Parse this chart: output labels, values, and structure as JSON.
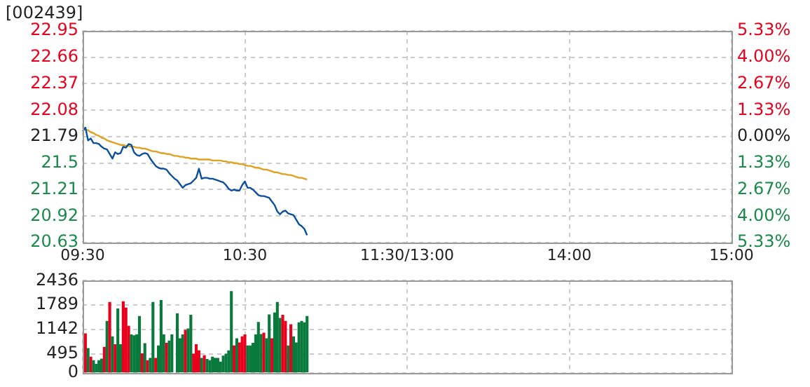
{
  "chart_data": [
    {
      "type": "line",
      "title": "[002439]",
      "categories": [
        "09:30",
        null,
        null,
        null,
        null,
        null,
        null,
        null,
        null,
        null,
        null,
        null,
        null,
        null,
        null,
        null,
        null,
        null,
        null,
        null,
        null,
        null,
        null,
        null,
        null,
        null,
        null,
        null,
        null,
        null,
        null,
        null,
        null,
        null,
        null,
        null,
        null,
        null,
        null,
        null,
        null,
        null,
        null,
        null,
        null,
        null,
        null,
        null,
        null,
        null,
        null,
        null,
        null,
        null,
        null,
        null,
        null,
        null,
        null,
        null,
        "10:30",
        null,
        null,
        null,
        null,
        null,
        null,
        null,
        null,
        null,
        null,
        null,
        null,
        null,
        null,
        null,
        null,
        null,
        null,
        null,
        null,
        null,
        null,
        null,
        null,
        null,
        null,
        null,
        null,
        null,
        null,
        null,
        null,
        null,
        null,
        null,
        null,
        null,
        null,
        null,
        null,
        null,
        null,
        null,
        null,
        null,
        null,
        null,
        null,
        null,
        null,
        null,
        null,
        null,
        null,
        null,
        null,
        null,
        null,
        null,
        "11:30/13:00",
        null,
        null,
        null,
        null,
        null,
        null,
        null,
        null,
        null,
        null,
        null,
        null,
        null,
        null,
        null,
        null,
        null,
        null,
        null,
        null,
        null,
        null,
        null,
        null,
        null,
        null,
        null,
        null,
        null,
        null,
        null,
        null,
        null,
        null,
        null,
        null,
        null,
        null,
        null,
        null,
        null,
        null,
        null,
        null,
        null,
        null,
        null,
        null,
        null,
        null,
        null,
        null,
        null,
        null,
        null,
        null,
        null,
        null,
        null,
        "14:00",
        null,
        null,
        null,
        null,
        null,
        null,
        null,
        null,
        null,
        null,
        null,
        null,
        null,
        null,
        null,
        null,
        null,
        null,
        null,
        null,
        null,
        null,
        null,
        null,
        null,
        null,
        null,
        null,
        null,
        null,
        null,
        null,
        null,
        null,
        null,
        null,
        null,
        null,
        null,
        null,
        null,
        null,
        null,
        null,
        null,
        null,
        null,
        null,
        null,
        null,
        null,
        null,
        null,
        null,
        null,
        null,
        null,
        null,
        null,
        "15:00"
      ],
      "ylim": [
        20.63,
        22.95
      ],
      "yticks": [
        20.63,
        20.92,
        21.21,
        21.5,
        21.79,
        22.08,
        22.37,
        22.66,
        22.95
      ],
      "y2lim": [
        -5.33,
        5.33
      ],
      "y2ticks": [
        {
          "value": -5.33,
          "label": "5.33%"
        },
        {
          "value": -4,
          "label": "4.00%"
        },
        {
          "value": -2.67,
          "label": "2.67%"
        },
        {
          "value": -1.33,
          "label": "1.33%"
        },
        {
          "value": 0,
          "label": "0.00%"
        },
        {
          "value": 1.33,
          "label": "1.33%"
        },
        {
          "value": 2.67,
          "label": "2.67%"
        },
        {
          "value": 4,
          "label": "4.00%"
        },
        {
          "value": 5.33,
          "label": "5.33%"
        }
      ],
      "grid": true,
      "marker": "none",
      "series": [
        {
          "color": "#0b4fa0",
          "values": [
            21.85,
            21.89,
            21.75,
            21.77,
            21.72,
            21.72,
            21.71,
            21.68,
            21.66,
            21.65,
            21.6,
            21.55,
            21.62,
            21.6,
            21.61,
            21.68,
            21.67,
            21.71,
            21.7,
            21.62,
            21.59,
            21.58,
            21.6,
            21.61,
            21.6,
            21.55,
            21.51,
            21.47,
            21.45,
            21.44,
            21.44,
            21.43,
            21.39,
            21.36,
            21.33,
            21.31,
            21.27,
            21.23,
            21.26,
            21.27,
            21.28,
            21.31,
            21.34,
            21.44,
            21.33,
            21.34,
            21.34,
            21.33,
            21.33,
            21.32,
            21.31,
            21.3,
            21.29,
            21.26,
            21.22,
            21.2,
            21.21,
            21.2,
            21.2,
            21.26,
            21.3,
            21.23,
            21.23,
            21.21,
            21.18,
            21.15,
            21.14,
            21.14,
            21.13,
            21.12,
            21.08,
            21.04,
            20.97,
            20.94,
            20.97,
            20.98,
            20.95,
            20.94,
            20.93,
            20.88,
            20.83,
            20.81,
            20.78,
            20.71,
            null,
            null,
            null,
            null,
            null,
            null,
            null,
            null,
            null,
            null,
            null,
            null,
            null,
            null,
            null,
            null,
            null,
            null,
            null,
            null,
            null,
            null,
            null,
            null,
            null,
            null,
            null,
            null,
            null,
            null,
            null,
            null,
            null,
            null,
            null,
            null,
            null,
            null,
            null,
            null,
            null,
            null,
            null,
            null,
            null,
            null,
            null,
            null,
            null,
            null,
            null,
            null,
            null,
            null,
            null,
            null,
            null,
            null,
            null,
            null,
            null,
            null,
            null,
            null,
            null,
            null,
            null,
            null,
            null,
            null,
            null,
            null,
            null,
            null,
            null,
            null,
            null,
            null,
            null,
            null,
            null,
            null,
            null,
            null,
            null,
            null,
            null,
            null,
            null,
            null,
            null,
            null,
            null,
            null,
            null,
            null,
            null,
            null,
            null,
            null,
            null,
            null,
            null,
            null,
            null,
            null,
            null,
            null,
            null,
            null,
            null,
            null,
            null,
            null,
            null,
            null,
            null,
            null,
            null,
            null,
            null,
            null,
            null,
            null,
            null,
            null,
            null,
            null,
            null,
            null,
            null,
            null,
            null,
            null,
            null,
            null,
            null,
            null,
            null,
            null,
            null,
            null,
            null,
            null,
            null,
            null,
            null,
            null,
            null,
            null,
            null,
            null,
            null,
            null,
            null,
            null,
            null
          ]
        },
        {
          "color": "#e0a020",
          "values": [
            21.89,
            21.87,
            21.86,
            21.84,
            21.83,
            21.81,
            21.8,
            21.78,
            21.77,
            21.75,
            21.74,
            21.73,
            21.72,
            21.71,
            21.7,
            21.7,
            21.69,
            21.69,
            21.68,
            21.68,
            21.67,
            21.67,
            21.66,
            21.66,
            21.65,
            21.64,
            21.63,
            21.63,
            21.62,
            21.61,
            21.61,
            21.6,
            21.6,
            21.59,
            21.58,
            21.58,
            21.57,
            21.57,
            21.56,
            21.56,
            21.55,
            21.55,
            21.55,
            21.54,
            21.54,
            21.54,
            21.54,
            21.54,
            21.53,
            21.53,
            21.53,
            21.53,
            21.52,
            21.52,
            21.51,
            21.51,
            21.5,
            21.5,
            21.49,
            21.49,
            21.48,
            21.47,
            21.47,
            21.46,
            21.45,
            21.45,
            21.44,
            21.43,
            21.43,
            21.42,
            21.41,
            21.4,
            21.4,
            21.39,
            21.38,
            21.38,
            21.37,
            21.37,
            21.36,
            21.35,
            21.34,
            21.34,
            21.33,
            21.32,
            null,
            null,
            null,
            null,
            null,
            null,
            null,
            null,
            null,
            null,
            null,
            null,
            null,
            null,
            null,
            null,
            null,
            null,
            null,
            null,
            null,
            null,
            null,
            null,
            null,
            null,
            null,
            null,
            null,
            null,
            null,
            null,
            null,
            null,
            null,
            null,
            null,
            null,
            null,
            null,
            null,
            null,
            null,
            null,
            null,
            null,
            null,
            null,
            null,
            null,
            null,
            null,
            null,
            null,
            null,
            null,
            null,
            null,
            null,
            null,
            null,
            null,
            null,
            null,
            null,
            null,
            null,
            null,
            null,
            null,
            null,
            null,
            null,
            null,
            null,
            null,
            null,
            null,
            null,
            null,
            null,
            null,
            null,
            null,
            null,
            null,
            null,
            null,
            null,
            null,
            null,
            null,
            null,
            null,
            null,
            null,
            null,
            null,
            null,
            null,
            null,
            null,
            null,
            null,
            null,
            null,
            null,
            null,
            null,
            null,
            null,
            null,
            null,
            null,
            null,
            null,
            null,
            null,
            null,
            null,
            null,
            null,
            null,
            null,
            null,
            null,
            null,
            null,
            null,
            null,
            null,
            null,
            null,
            null,
            null,
            null,
            null,
            null,
            null,
            null,
            null,
            null,
            null,
            null,
            null,
            null,
            null,
            null,
            null,
            null,
            null,
            null,
            null,
            null,
            null,
            null,
            null
          ]
        }
      ]
    },
    {
      "type": "bar",
      "tick_labels": "y",
      "categories": [
        null,
        null,
        null,
        null,
        null,
        null,
        null,
        null,
        null,
        null,
        null,
        null,
        null,
        null,
        null,
        null,
        null,
        null,
        null,
        null,
        null,
        null,
        null,
        null,
        null,
        null,
        null,
        null,
        null,
        null,
        null,
        null,
        null,
        null,
        null,
        null,
        null,
        null,
        null,
        null,
        null,
        null,
        null,
        null,
        null,
        null,
        null,
        null,
        null,
        null,
        null,
        null,
        null,
        null,
        null,
        null,
        null,
        null,
        null,
        null,
        null,
        null,
        null,
        null,
        null,
        null,
        null,
        null,
        null,
        null,
        null,
        null,
        null,
        null,
        null,
        null,
        null,
        null,
        null,
        null,
        null,
        null,
        null,
        null,
        null,
        null,
        null,
        null,
        null,
        null,
        null,
        null,
        null,
        null,
        null,
        null,
        null,
        null,
        null,
        null,
        null,
        null,
        null,
        null,
        null,
        null,
        null,
        null,
        null,
        null,
        null,
        null,
        null,
        null,
        null,
        null,
        null,
        null,
        null,
        null,
        null,
        null,
        null,
        null,
        null,
        null,
        null,
        null,
        null,
        null,
        null,
        null,
        null,
        null,
        null,
        null,
        null,
        null,
        null,
        null,
        null,
        null,
        null,
        null,
        null,
        null,
        null,
        null,
        null,
        null,
        null,
        null,
        null,
        null,
        null,
        null,
        null,
        null,
        null,
        null,
        null,
        null,
        null,
        null,
        null,
        null,
        null,
        null,
        null,
        null,
        null,
        null,
        null,
        null,
        null,
        null,
        null,
        null,
        null,
        null,
        null,
        null,
        null,
        null,
        null,
        null,
        null,
        null,
        null,
        null,
        null,
        null,
        null,
        null,
        null,
        null,
        null,
        null,
        null,
        null,
        null,
        null,
        null,
        null,
        null,
        null,
        null,
        null,
        null,
        null,
        null,
        null,
        null,
        null,
        null,
        null,
        null,
        null,
        null,
        null,
        null,
        null,
        null,
        null,
        null,
        null,
        null,
        null,
        null,
        null,
        null,
        null,
        null,
        null,
        null,
        null,
        null,
        null,
        null,
        null,
        null
      ],
      "ylim": [
        0,
        2436
      ],
      "yticks": [
        0,
        495,
        1142,
        1789,
        2436
      ],
      "grid": true,
      "values": [
        null,
        1030,
        640,
        410,
        320,
        220,
        320,
        360,
        670,
        1360,
        1860,
        950,
        740,
        1690,
        740,
        1880,
        1710,
        1230,
        1000,
        980,
        1000,
        1490,
        500,
        770,
        320,
        380,
        1860,
        380,
        710,
        1910,
        1000,
        780,
        840,
        1000,
        null,
        1560,
        900,
        1000,
        1120,
        1160,
        1520,
        490,
        740,
        580,
        380,
        450,
        350,
        320,
        410,
        380,
        380,
        280,
        440,
        490,
        580,
        2150,
        710,
        900,
        790,
        950,
        1000,
        710,
        710,
        780,
        1000,
        1330,
        1010,
        1050,
        900,
        1530,
        900,
        1580,
        1860,
        1440,
        1520,
        1360,
        710,
        1270,
        950,
        790,
        1320,
        1360,
        1320,
        1490,
        null,
        null,
        null,
        null,
        null,
        null,
        null,
        null,
        null,
        null,
        null,
        null,
        null,
        null,
        null,
        null,
        null,
        null,
        null,
        null,
        null,
        null,
        null,
        null,
        null,
        null,
        null,
        null,
        null,
        null,
        null,
        null,
        null,
        null,
        null,
        null,
        null,
        null,
        null,
        null,
        null,
        null,
        null,
        null,
        null,
        null,
        null,
        null,
        null,
        null,
        null,
        null,
        null,
        null,
        null,
        null,
        null,
        null,
        null,
        null,
        null,
        null,
        null,
        null,
        null,
        null,
        null,
        null,
        null,
        null,
        null,
        null,
        null,
        null,
        null,
        null,
        null,
        null,
        null,
        null,
        null,
        null,
        null,
        null,
        null,
        null,
        null,
        null,
        null,
        null,
        null,
        null,
        null,
        null,
        null,
        null,
        null,
        null,
        null,
        null,
        null,
        null,
        null,
        null,
        null,
        null,
        null,
        null,
        null,
        null,
        null,
        null,
        null,
        null,
        null,
        null,
        null,
        null,
        null,
        null,
        null,
        null,
        null,
        null,
        null,
        null,
        null,
        null,
        null,
        null,
        null,
        null,
        null,
        null,
        null,
        null,
        null,
        null,
        null,
        null,
        null,
        null,
        null,
        null,
        null,
        null,
        null,
        null,
        null,
        null,
        null,
        null,
        null,
        null,
        null,
        null,
        null
      ],
      "colors": [
        "#0a7a3c",
        "#e8001c",
        "#0a7a3c",
        "#e8001c",
        "#0a7a3c",
        "#0a7a3c",
        "#0a7a3c",
        "#0a7a3c",
        "#e8001c",
        "#0a7a3c",
        "#e8001c",
        "#0a7a3c",
        "#e8001c",
        "#0a7a3c",
        "#0a7a3c",
        "#e8001c",
        "#e8001c",
        "#e8001c",
        "#0a7a3c",
        "#0a7a3c",
        "#0a7a3c",
        "#0a7a3c",
        "#e8001c",
        "#0a7a3c",
        "#e8001c",
        "#0a7a3c",
        "#0a7a3c",
        "#e8001c",
        "#0a7a3c",
        "#0a7a3c",
        "#0a7a3c",
        "#e8001c",
        "#0a7a3c",
        "#0a7a3c",
        "#0a7a3c",
        "#0a7a3c",
        "#0a7a3c",
        "#0a7a3c",
        "#e8001c",
        "#0a7a3c",
        "#0a7a3c",
        "#e8001c",
        "#e8001c",
        "#e8001c",
        "#0a7a3c",
        "#e8001c",
        "#0a7a3c",
        "#0a7a3c",
        "#0a7a3c",
        "#0a7a3c",
        "#0a7a3c",
        "#0a7a3c",
        "#0a7a3c",
        "#0a7a3c",
        "#0a7a3c",
        "#0a7a3c",
        "#e8001c",
        "#0a7a3c",
        "#e8001c",
        "#e8001c",
        "#e8001c",
        "#0a7a3c",
        "#0a7a3c",
        "#0a7a3c",
        "#0a7a3c",
        "#0a7a3c",
        "#0a7a3c",
        "#e8001c",
        "#0a7a3c",
        "#0a7a3c",
        "#e8001c",
        "#0a7a3c",
        "#0a7a3c",
        "#0a7a3c",
        "#e8001c",
        "#e8001c",
        "#0a7a3c",
        "#e8001c",
        "#0a7a3c",
        "#0a7a3c",
        "#0a7a3c",
        "#0a7a3c",
        "#0a7a3c",
        "#0a7a3c",
        "#0a7a3c",
        "#0a7a3c",
        "#0a7a3c",
        "#0a7a3c",
        "#0a7a3c",
        "#0a7a3c",
        "#0a7a3c",
        "#0a7a3c",
        "#0a7a3c",
        "#0a7a3c",
        "#0a7a3c",
        "#0a7a3c",
        "#0a7a3c",
        "#0a7a3c",
        "#0a7a3c",
        "#0a7a3c",
        "#0a7a3c",
        "#0a7a3c",
        "#0a7a3c",
        "#0a7a3c",
        "#0a7a3c",
        "#0a7a3c",
        "#0a7a3c",
        "#0a7a3c",
        "#0a7a3c",
        "#0a7a3c",
        "#0a7a3c",
        "#0a7a3c",
        "#0a7a3c",
        "#0a7a3c",
        "#0a7a3c",
        "#0a7a3c",
        "#0a7a3c",
        "#0a7a3c",
        "#0a7a3c",
        "#0a7a3c",
        "#0a7a3c",
        "#0a7a3c",
        "#0a7a3c",
        "#0a7a3c",
        "#0a7a3c",
        "#0a7a3c",
        "#0a7a3c",
        "#0a7a3c",
        "#0a7a3c",
        "#0a7a3c",
        "#0a7a3c",
        "#0a7a3c",
        "#0a7a3c",
        "#0a7a3c",
        "#0a7a3c",
        "#0a7a3c",
        "#0a7a3c",
        "#0a7a3c",
        "#0a7a3c",
        "#0a7a3c",
        "#0a7a3c",
        "#0a7a3c",
        "#0a7a3c",
        "#0a7a3c",
        "#0a7a3c",
        "#0a7a3c",
        "#0a7a3c",
        "#0a7a3c",
        "#0a7a3c",
        "#0a7a3c",
        "#0a7a3c",
        "#0a7a3c",
        "#0a7a3c",
        "#0a7a3c",
        "#0a7a3c",
        "#0a7a3c",
        "#0a7a3c",
        "#0a7a3c",
        "#0a7a3c",
        "#0a7a3c",
        "#0a7a3c",
        "#0a7a3c",
        "#0a7a3c",
        "#0a7a3c",
        "#0a7a3c",
        "#0a7a3c",
        "#0a7a3c",
        "#0a7a3c",
        "#0a7a3c",
        "#0a7a3c",
        "#0a7a3c",
        "#0a7a3c",
        "#0a7a3c",
        "#0a7a3c",
        "#0a7a3c",
        "#0a7a3c",
        "#0a7a3c",
        "#0a7a3c",
        "#0a7a3c",
        "#0a7a3c",
        "#0a7a3c",
        "#0a7a3c",
        "#0a7a3c",
        "#0a7a3c",
        "#0a7a3c",
        "#0a7a3c",
        "#0a7a3c",
        "#0a7a3c",
        "#0a7a3c",
        "#0a7a3c",
        "#0a7a3c",
        "#0a7a3c",
        "#0a7a3c",
        "#0a7a3c",
        "#0a7a3c",
        "#0a7a3c",
        "#0a7a3c",
        "#0a7a3c",
        "#0a7a3c",
        "#0a7a3c",
        "#0a7a3c",
        "#0a7a3c",
        "#0a7a3c",
        "#0a7a3c",
        "#0a7a3c",
        "#0a7a3c",
        "#0a7a3c",
        "#0a7a3c",
        "#0a7a3c",
        "#0a7a3c",
        "#0a7a3c",
        "#0a7a3c",
        "#0a7a3c",
        "#0a7a3c",
        "#0a7a3c",
        "#0a7a3c",
        "#0a7a3c",
        "#0a7a3c",
        "#0a7a3c",
        "#0a7a3c",
        "#0a7a3c",
        "#0a7a3c",
        "#0a7a3c",
        "#0a7a3c",
        "#0a7a3c",
        "#0a7a3c",
        "#0a7a3c",
        "#0a7a3c",
        "#0a7a3c",
        "#0a7a3c",
        "#0a7a3c",
        "#0a7a3c",
        "#0a7a3c",
        "#0a7a3c",
        "#0a7a3c",
        "#0a7a3c",
        "#0a7a3c",
        "#0a7a3c",
        "#0a7a3c",
        "#0a7a3c",
        "#0a7a3c"
      ]
    }
  ]
}
